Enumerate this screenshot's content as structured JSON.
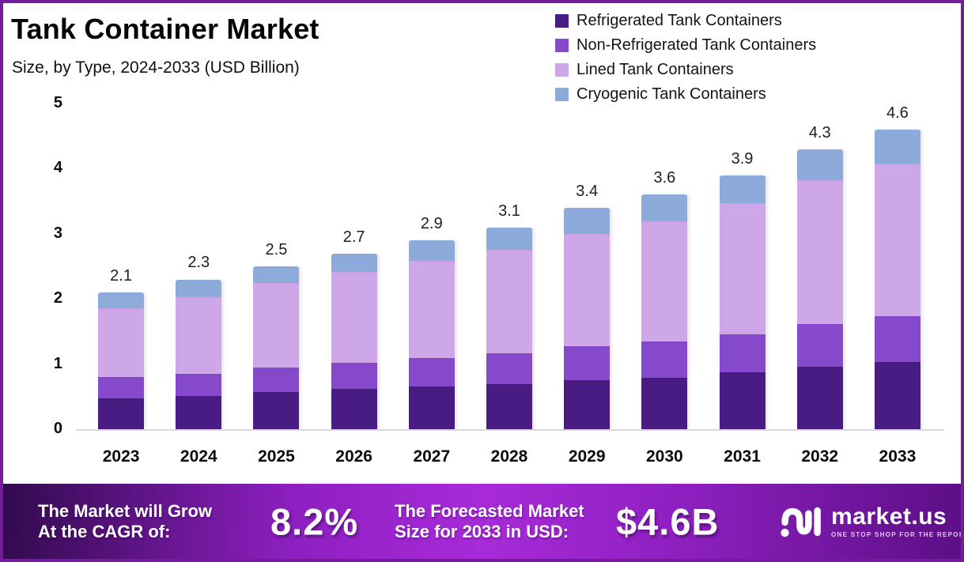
{
  "title": "Tank Container Market",
  "subtitle": "Size, by Type, 2024-2033 (USD Billion)",
  "frame": {
    "border_color": "#731c9c",
    "background": "#ffffff",
    "baseline_color": "#dadada"
  },
  "chart_data": {
    "type": "bar",
    "stacked": true,
    "title": "Tank Container Market",
    "subtitle": "Size, by Type, 2024-2033 (USD Billion)",
    "xlabel": "",
    "ylabel": "",
    "ylim": [
      0,
      5
    ],
    "yticks": [
      0,
      1,
      2,
      3,
      4,
      5
    ],
    "grid": false,
    "legend_position": "top-right",
    "categories": [
      "2023",
      "2024",
      "2025",
      "2026",
      "2027",
      "2028",
      "2029",
      "2030",
      "2031",
      "2032",
      "2033"
    ],
    "series": [
      {
        "name": "Refrigerated Tank Containers",
        "color": "#481c82",
        "values": [
          0.47,
          0.51,
          0.57,
          0.62,
          0.66,
          0.69,
          0.75,
          0.79,
          0.87,
          0.96,
          1.03
        ]
      },
      {
        "name": "Non-Refrigerated Tank Containers",
        "color": "#8749cb",
        "values": [
          0.33,
          0.34,
          0.38,
          0.4,
          0.43,
          0.47,
          0.52,
          0.56,
          0.59,
          0.66,
          0.7
        ]
      },
      {
        "name": "Lined Tank Containers",
        "color": "#cda7e8",
        "values": [
          1.06,
          1.18,
          1.3,
          1.4,
          1.5,
          1.6,
          1.73,
          1.84,
          2.01,
          2.2,
          2.35
        ]
      },
      {
        "name": "Cryogenic Tank Containers",
        "color": "#8cabda",
        "values": [
          0.24,
          0.27,
          0.25,
          0.28,
          0.31,
          0.34,
          0.4,
          0.41,
          0.43,
          0.48,
          0.52
        ]
      }
    ],
    "totals": [
      "2.1",
      "2.3",
      "2.5",
      "2.7",
      "2.9",
      "3.1",
      "3.4",
      "3.6",
      "3.9",
      "4.3",
      "4.6"
    ]
  },
  "banner": {
    "grow_line1": "The Market will Grow",
    "grow_line2": "At the CAGR of:",
    "cagr_value": "8.2%",
    "forecast_line1": "The Forecasted Market",
    "forecast_line2": "Size for 2033 in USD:",
    "forecast_value": "$4.6B",
    "logo_text": "market.us",
    "logo_tagline": "ONE STOP SHOP FOR THE REPORTS",
    "gradient_stops": [
      "#320a4e",
      "#8d1fc0",
      "#a82ad8",
      "#8c1fbe",
      "#5c0f86"
    ]
  }
}
